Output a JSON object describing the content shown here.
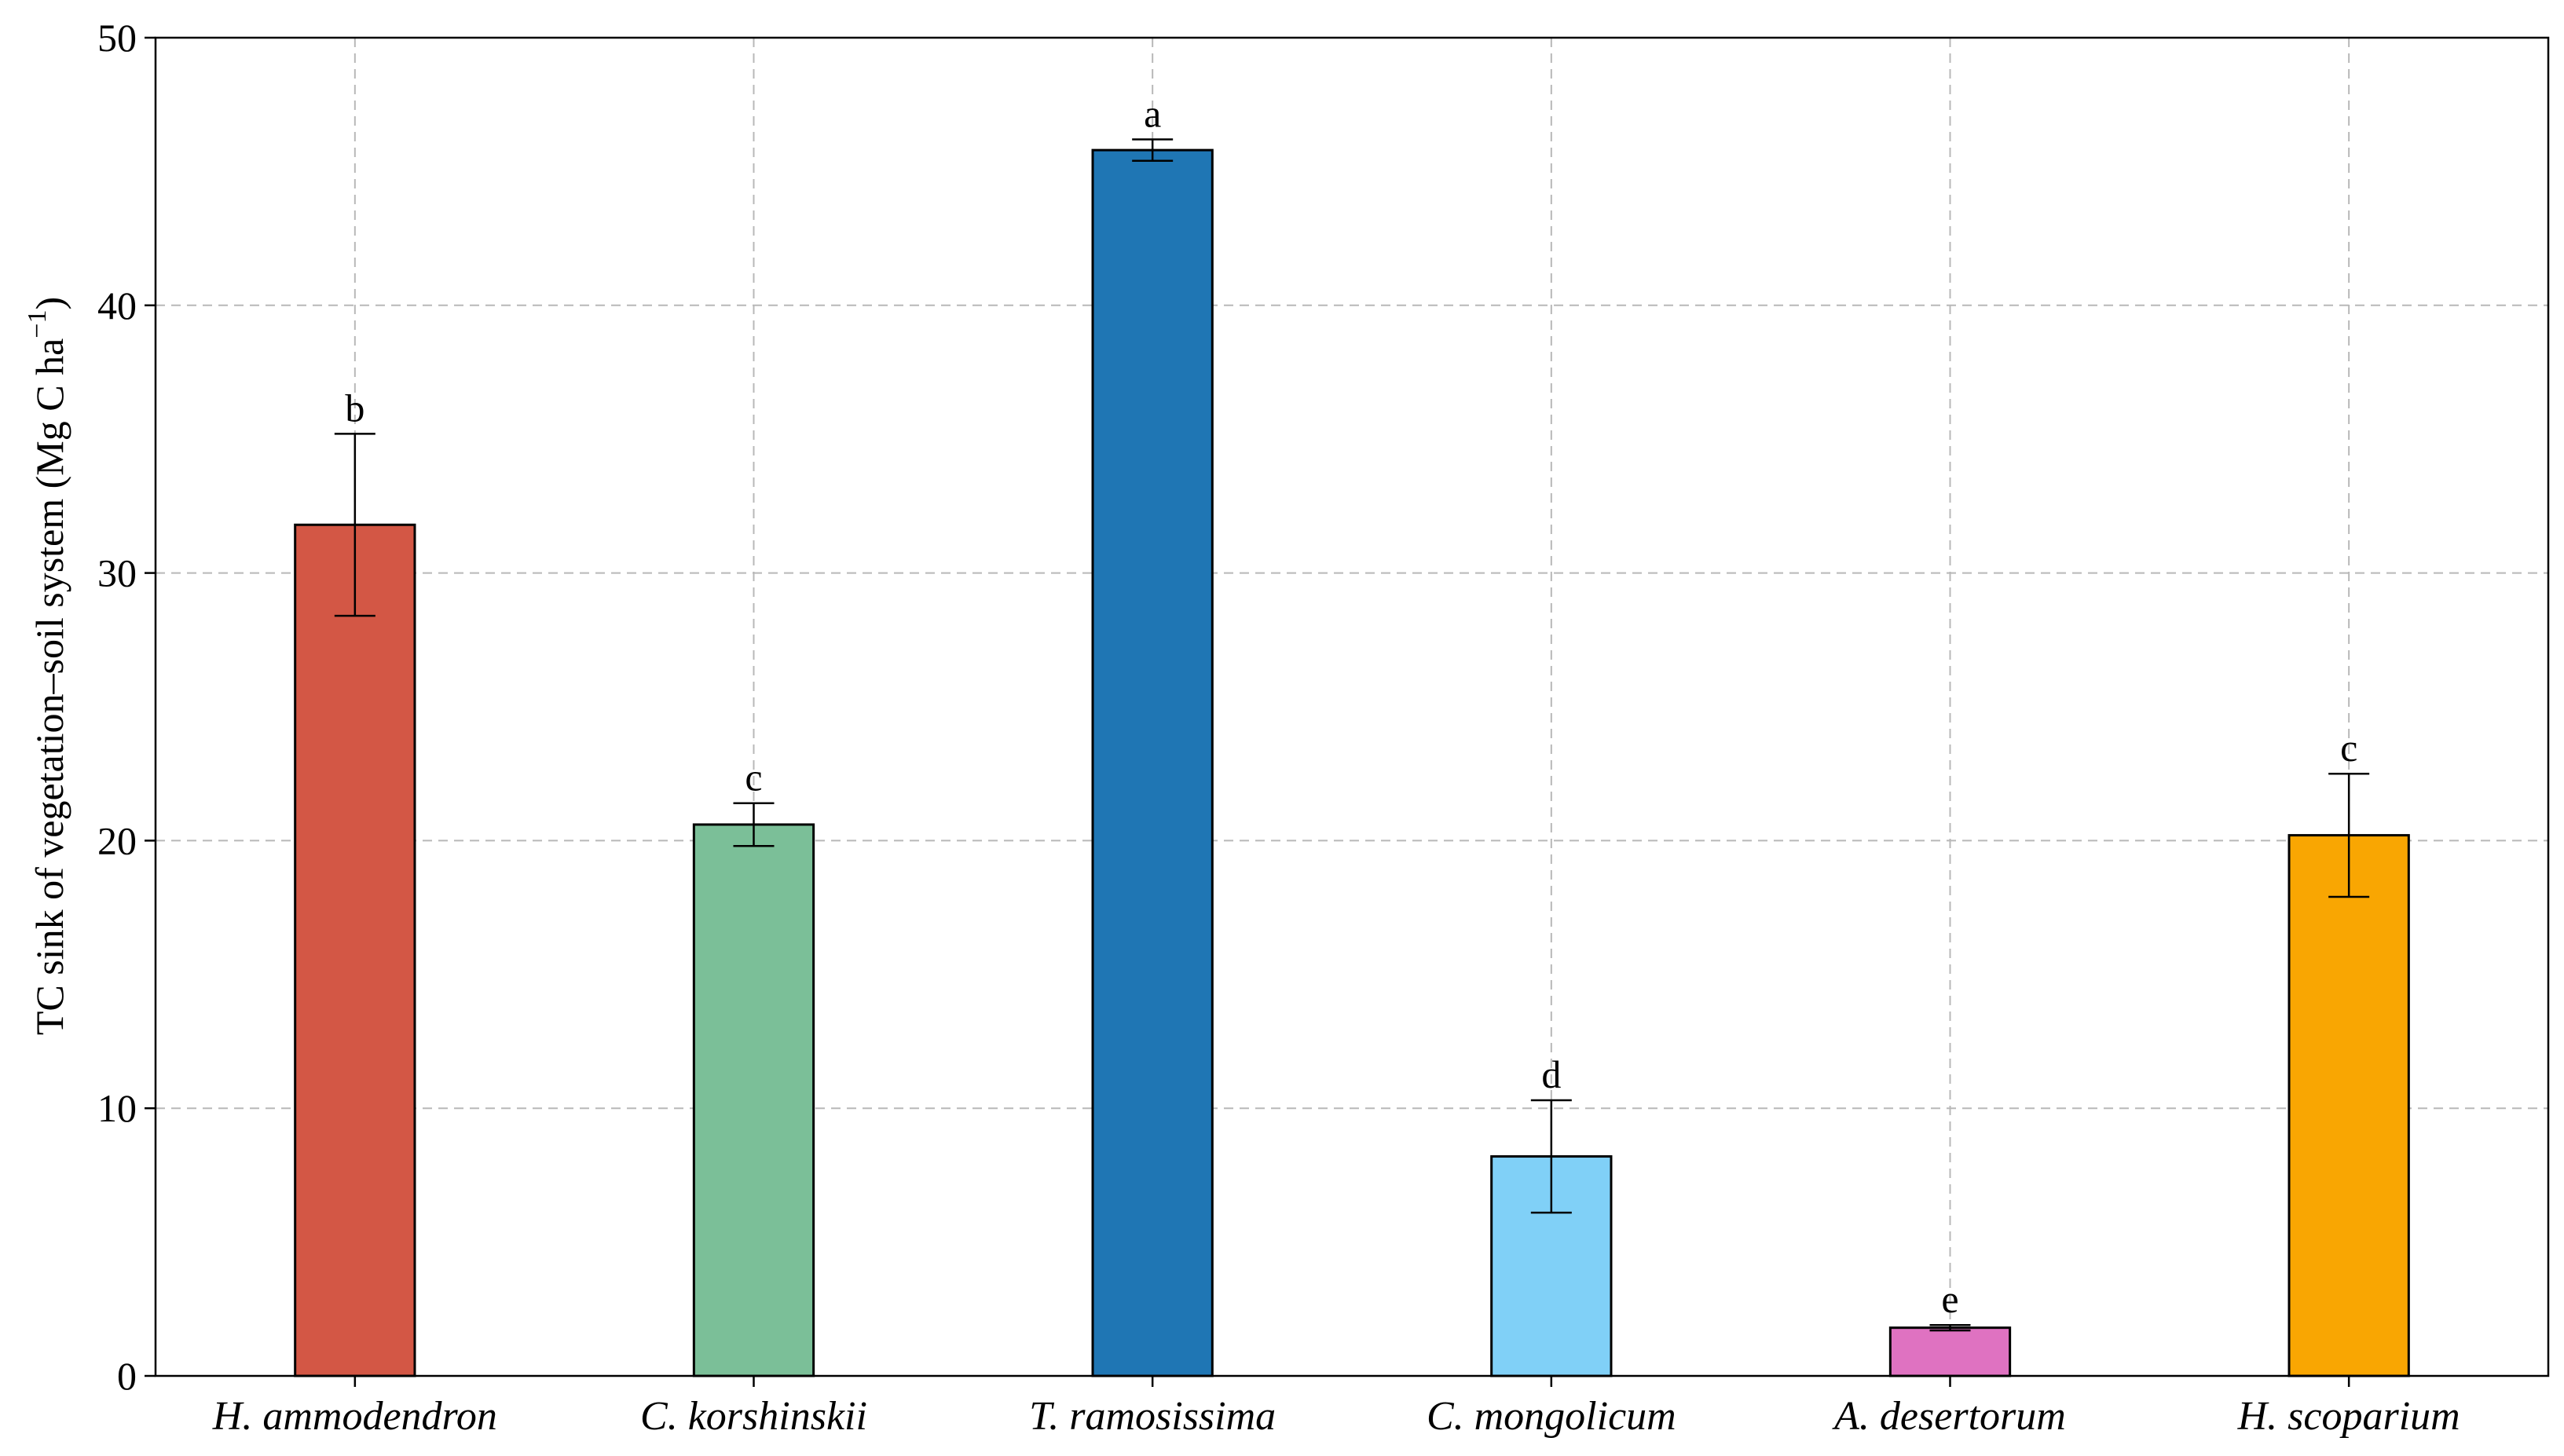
{
  "chart_data": {
    "type": "bar",
    "categories": [
      "H. ammodendron",
      "C. korshinskii",
      "T. ramosissima",
      "C. mongolicum",
      "A. desertorum",
      "H. scoparium"
    ],
    "values": [
      31.8,
      20.6,
      45.8,
      8.2,
      1.8,
      20.2
    ],
    "errors": [
      3.4,
      0.8,
      0.4,
      2.1,
      0.1,
      2.3
    ],
    "significance_letters": [
      "b",
      "c",
      "a",
      "d",
      "e",
      "c"
    ],
    "colors": [
      "#d35745",
      "#7bbf98",
      "#1f76b4",
      "#80d0f7",
      "#df72c1",
      "#f9a602"
    ],
    "ylabel": "TC sink of vegetation–soil system (Mg C ha",
    "ylabel_sup": "−1",
    "ylabel_close": ")",
    "xlabel": "",
    "title": "",
    "ylim": [
      0,
      50
    ],
    "yticks": [
      0,
      10,
      20,
      30,
      40,
      50
    ],
    "grid": true
  }
}
